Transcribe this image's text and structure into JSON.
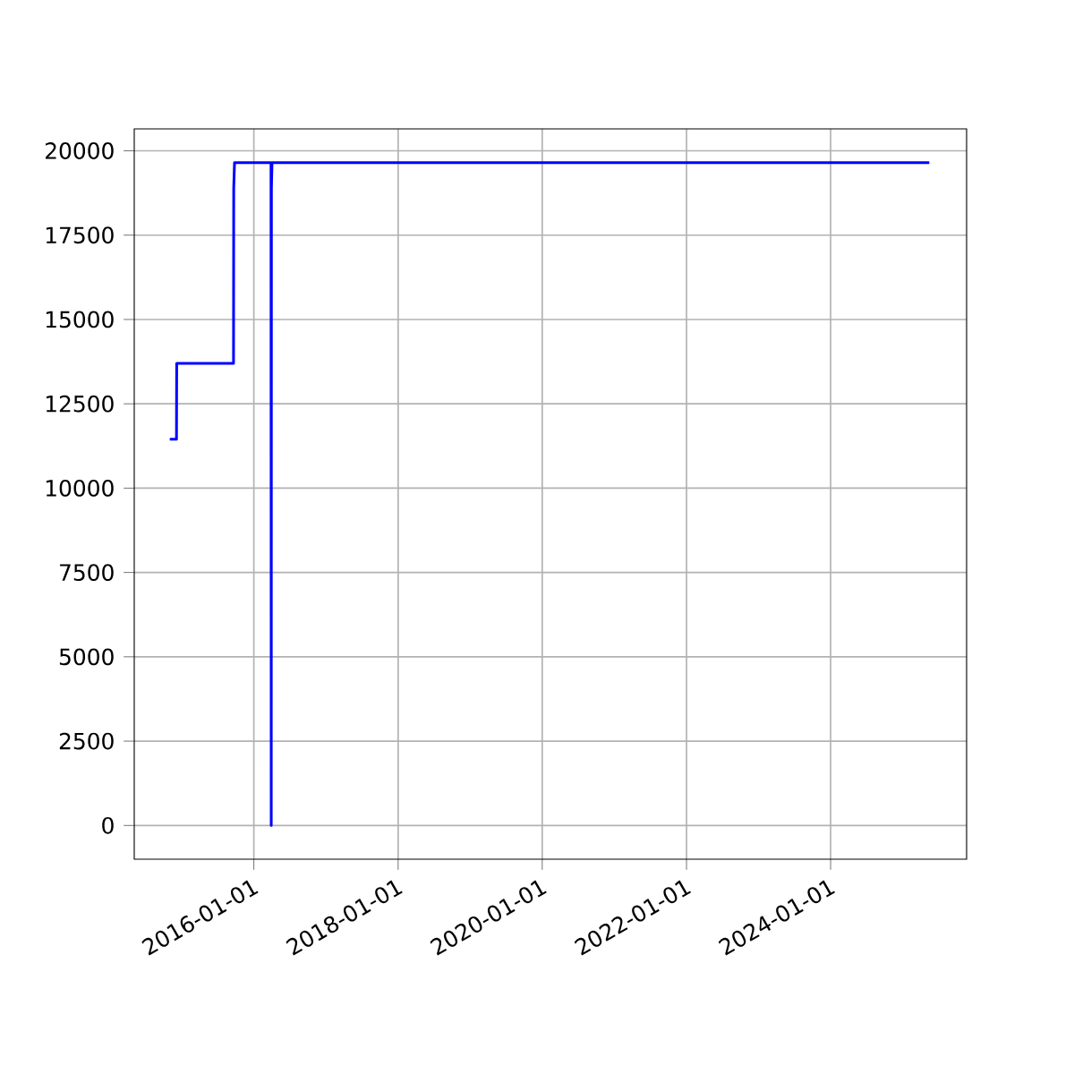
{
  "chart_data": {
    "type": "line",
    "x": [
      "2014-11-01",
      "2014-12-05",
      "2014-12-06",
      "2015-09-20",
      "2015-09-21",
      "2015-09-25",
      "2016-03-28",
      "2016-03-29",
      "2016-03-30",
      "2016-04-02",
      "2025-05-15"
    ],
    "series": [
      {
        "color": "#0000ff",
        "values": [
          11450,
          11450,
          13700,
          13700,
          18900,
          19650,
          19650,
          0,
          18900,
          19650,
          19650
        ]
      }
    ],
    "xlim": [
      "2014-05-05",
      "2025-11-20"
    ],
    "xticks": [
      "2016-01-01",
      "2018-01-01",
      "2020-01-01",
      "2022-01-01",
      "2024-01-01"
    ],
    "ylim": [
      -1000,
      20650
    ],
    "yticks": [
      0,
      2500,
      5000,
      7500,
      10000,
      12500,
      15000,
      17500,
      20000
    ],
    "grid": true,
    "marker": "none",
    "line_style": "solid"
  }
}
